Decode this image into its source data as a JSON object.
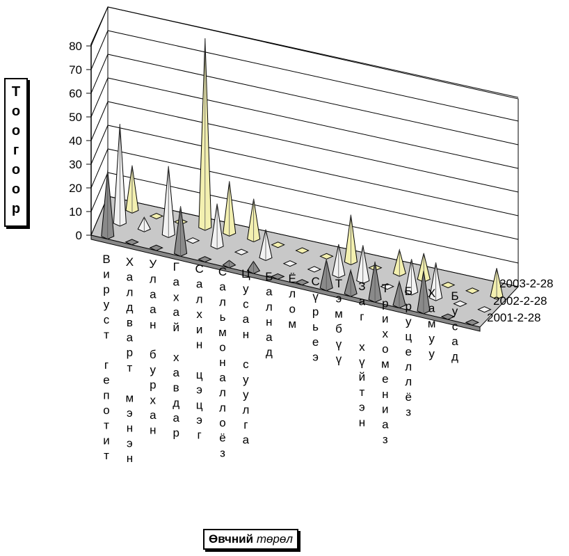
{
  "chart_data": {
    "type": "bar",
    "style": "3d-cones",
    "title": "",
    "ylabel": "Тоогоор",
    "xlabel": {
      "bold": "Өвчний",
      "italic": "төрөл"
    },
    "ylim": [
      0,
      80
    ],
    "yticks": [
      0,
      10,
      20,
      30,
      40,
      50,
      60,
      70,
      80
    ],
    "grid": true,
    "categories": [
      "Вируст гепотит",
      "Халдварт мэнэн",
      "Улаан бурхан",
      "Гахай хавдар",
      "Салхин цэцэг",
      "Сальмоналлоёз",
      "Цусан суулга",
      "Балнад",
      "Ёлом",
      "Сүрьеэ",
      "Тэмбүү",
      "Заг хүйтэн",
      "Трихомениаз",
      "Бруцеллёз",
      "Хамуу",
      "Бусад"
    ],
    "series": [
      {
        "name": "2001-2-28",
        "color": "#8a8a8a",
        "values": [
          28,
          0,
          0,
          20,
          0,
          2,
          4,
          0,
          0,
          12,
          10,
          16,
          10,
          17,
          0,
          0
        ]
      },
      {
        "name": "2002-2-28",
        "color": "#f2f2f2",
        "values": [
          42,
          5,
          29,
          0,
          18,
          0,
          12,
          0,
          0,
          13,
          15,
          0,
          14,
          15,
          0,
          1
        ]
      },
      {
        "name": "2003-2-28",
        "color": "#f3f0b0",
        "values": [
          19,
          0,
          0,
          80,
          22,
          17,
          0,
          0,
          0,
          20,
          0,
          10,
          11,
          0,
          0,
          12
        ]
      }
    ]
  }
}
